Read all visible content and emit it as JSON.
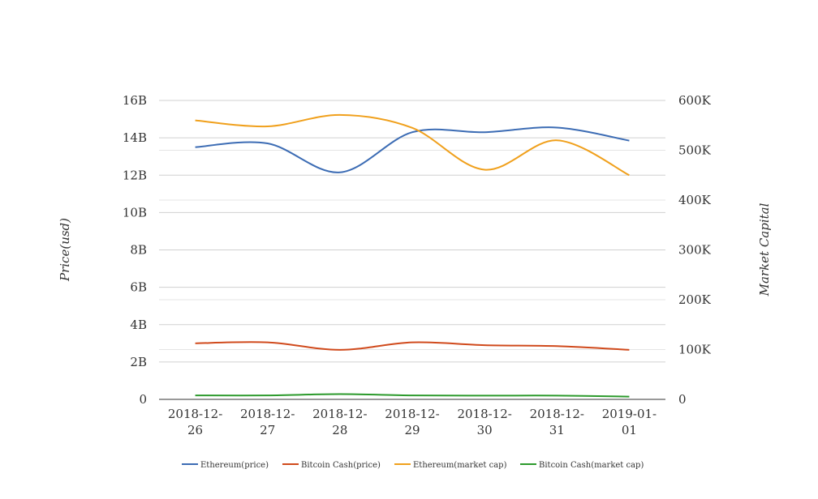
{
  "chart_data": {
    "type": "line",
    "x": [
      "2018-12-26",
      "2018-12-27",
      "2018-12-28",
      "2018-12-29",
      "2018-12-30",
      "2018-12-31",
      "2019-01-01"
    ],
    "x_tick_labels": [
      [
        "2018-12-",
        "26"
      ],
      [
        "2018-12-",
        "27"
      ],
      [
        "2018-12-",
        "28"
      ],
      [
        "2018-12-",
        "29"
      ],
      [
        "2018-12-",
        "30"
      ],
      [
        "2018-12-",
        "31"
      ],
      [
        "2019-01-",
        "01"
      ]
    ],
    "ylabel": "Price(usd)",
    "y2label": "Market Capital",
    "ylim": [
      0,
      16000000000
    ],
    "y2lim": [
      0,
      600000
    ],
    "y_ticks": [
      0,
      2000000000,
      4000000000,
      6000000000,
      8000000000,
      10000000000,
      12000000000,
      14000000000,
      16000000000
    ],
    "y_tick_labels": [
      "0",
      "2B",
      "4B",
      "6B",
      "8B",
      "10B",
      "12B",
      "14B",
      "16B"
    ],
    "y2_ticks": [
      0,
      100000,
      200000,
      300000,
      400000,
      500000,
      600000
    ],
    "y2_tick_labels": [
      "0",
      "100K",
      "200K",
      "300K",
      "400K",
      "500K",
      "600K"
    ],
    "grid": true,
    "legend_position": "bottom",
    "series": [
      {
        "name": "Ethereum(price)",
        "axis": "left",
        "color": "#3c6cb4",
        "values": [
          13500000000,
          13700000000,
          12150000000,
          14300000000,
          14300000000,
          14550000000,
          13850000000
        ]
      },
      {
        "name": "Bitcoin Cash(price)",
        "axis": "left",
        "color": "#d04a1c",
        "values": [
          3000000000,
          3050000000,
          2650000000,
          3050000000,
          2900000000,
          2850000000,
          2650000000
        ]
      },
      {
        "name": "Ethereum(market cap)",
        "axis": "right",
        "color": "#f0a01c",
        "values": [
          560000,
          548000,
          571000,
          545000,
          461000,
          520000,
          450000
        ]
      },
      {
        "name": "Bitcoin Cash(market cap)",
        "axis": "right",
        "color": "#2c9a2c",
        "values": [
          8000,
          8000,
          10500,
          8000,
          7500,
          7500,
          5500
        ]
      }
    ]
  }
}
